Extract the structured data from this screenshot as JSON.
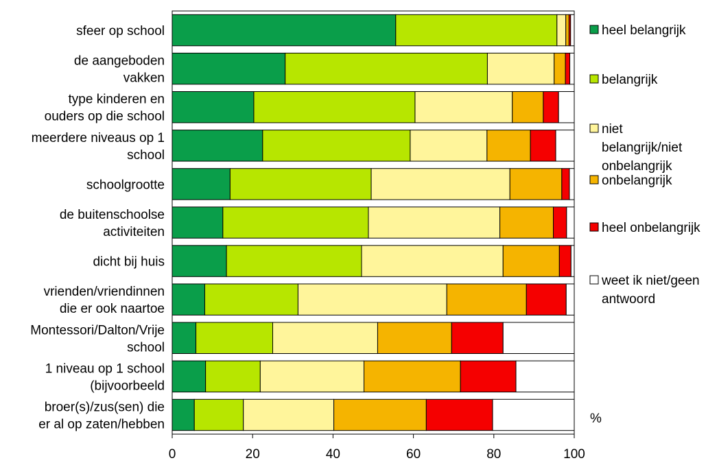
{
  "chart_data": {
    "type": "bar",
    "orientation": "horizontal",
    "stacked": true,
    "categories": [
      [
        "sfeer op school"
      ],
      [
        "de aangeboden",
        "vakken"
      ],
      [
        "type kinderen en",
        "ouders op die school"
      ],
      [
        "meerdere niveaus op 1",
        "school"
      ],
      [
        "schoolgrootte"
      ],
      [
        "de buitenschoolse",
        "activiteiten"
      ],
      [
        "dicht bij huis"
      ],
      [
        "vrienden/vriendinnen",
        "die er ook naartoe"
      ],
      [
        "Montessori/Dalton/Vrije",
        "school"
      ],
      [
        "1 niveau op 1 school",
        "(bijvoorbeeld"
      ],
      [
        "broer(s)/zus(sen) die",
        "er al op zaten/hebben"
      ]
    ],
    "series": [
      {
        "name": "heel belangrijk",
        "color": "#0a9e4a",
        "values": [
          55.6,
          28.1,
          20.3,
          22.5,
          14.4,
          12.6,
          13.5,
          8.1,
          5.9,
          8.3,
          5.5
        ]
      },
      {
        "name": "belangrijk",
        "color": "#b7e600",
        "values": [
          40.1,
          50.3,
          40.1,
          36.7,
          35.1,
          36.2,
          33.6,
          23.2,
          19.1,
          13.6,
          12.2
        ]
      },
      {
        "name": "niet belangrijk/niet onbelangrijk",
        "color": "#fff59b",
        "values": [
          2.2,
          16.6,
          24.2,
          19.1,
          34.5,
          32.7,
          35.2,
          37.0,
          26.1,
          25.8,
          22.5
        ]
      },
      {
        "name": "onbelangrijk",
        "color": "#f5b400",
        "values": [
          0.8,
          2.8,
          7.7,
          10.8,
          12.9,
          13.3,
          14.0,
          19.8,
          18.4,
          24.0,
          23.0
        ]
      },
      {
        "name": "heel onbelangrijk",
        "color": "#f50000",
        "values": [
          0.4,
          1.1,
          3.8,
          6.3,
          1.9,
          3.3,
          2.9,
          9.9,
          12.8,
          13.8,
          16.5
        ]
      },
      {
        "name": "weet ik niet/geen antwoord",
        "color": "#ffffff",
        "values": [
          0.9,
          1.1,
          3.9,
          4.6,
          1.2,
          1.9,
          0.8,
          2.0,
          17.7,
          14.5,
          20.3
        ]
      }
    ],
    "legend_lines": [
      [
        "heel belangrijk"
      ],
      [
        "belangrijk"
      ],
      [
        "niet",
        "belangrijk/niet",
        "onbelangrijk"
      ],
      [
        "onbelangrijk"
      ],
      [
        "heel onbelangrijk"
      ],
      [
        "weet ik niet/geen",
        "antwoord"
      ]
    ],
    "xlim": [
      0,
      100
    ],
    "xticks": [
      "0",
      "20",
      "40",
      "60",
      "80",
      "100"
    ],
    "xlabel": "%",
    "legend_position": "right",
    "grid": false
  }
}
